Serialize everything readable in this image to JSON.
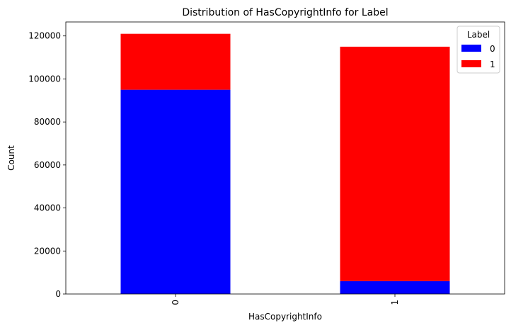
{
  "chart_data": {
    "type": "bar",
    "stacked": true,
    "title": "Distribution of HasCopyrightInfo for Label",
    "xlabel": "HasCopyrightInfo",
    "ylabel": "Count",
    "categories": [
      "0",
      "1"
    ],
    "series": [
      {
        "name": "0",
        "color": "#0000ff",
        "values": [
          95000,
          6000
        ]
      },
      {
        "name": "1",
        "color": "#ff0000",
        "values": [
          26000,
          109000
        ]
      }
    ],
    "ylim": [
      0,
      126500
    ],
    "yticks": [
      0,
      20000,
      40000,
      60000,
      80000,
      100000,
      120000
    ],
    "ytick_labels": [
      "0",
      "20000",
      "40000",
      "60000",
      "80000",
      "100000",
      "120000"
    ],
    "legend": {
      "title": "Label",
      "position": "top-right"
    },
    "grid": false
  }
}
